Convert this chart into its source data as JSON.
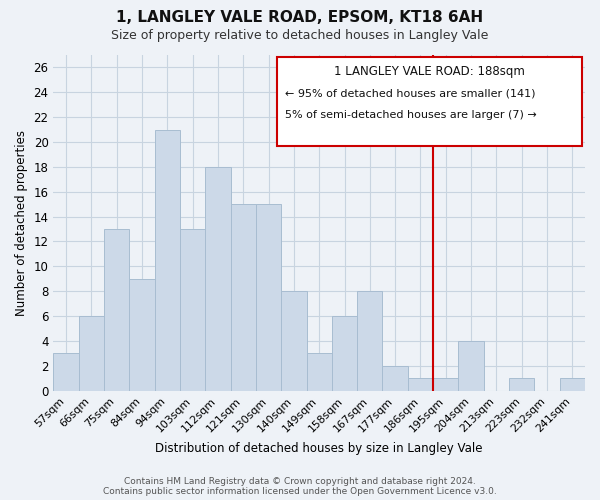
{
  "title": "1, LANGLEY VALE ROAD, EPSOM, KT18 6AH",
  "subtitle": "Size of property relative to detached houses in Langley Vale",
  "xlabel": "Distribution of detached houses by size in Langley Vale",
  "ylabel": "Number of detached properties",
  "bar_color": "#ccd9e8",
  "bar_edgecolor": "#a8bdd1",
  "bin_labels": [
    "57sqm",
    "66sqm",
    "75sqm",
    "84sqm",
    "94sqm",
    "103sqm",
    "112sqm",
    "121sqm",
    "130sqm",
    "140sqm",
    "149sqm",
    "158sqm",
    "167sqm",
    "177sqm",
    "186sqm",
    "195sqm",
    "204sqm",
    "213sqm",
    "223sqm",
    "232sqm",
    "241sqm"
  ],
  "bar_heights": [
    3,
    6,
    13,
    9,
    21,
    13,
    18,
    15,
    15,
    8,
    3,
    6,
    8,
    2,
    1,
    1,
    4,
    0,
    1,
    0,
    1
  ],
  "ylim": [
    0,
    27
  ],
  "yticks": [
    0,
    2,
    4,
    6,
    8,
    10,
    12,
    14,
    16,
    18,
    20,
    22,
    24,
    26
  ],
  "vline_x_index": 14,
  "vline_color": "#cc0000",
  "annotation_title": "1 LANGLEY VALE ROAD: 188sqm",
  "annotation_line1": "← 95% of detached houses are smaller (141)",
  "annotation_line2": "5% of semi-detached houses are larger (7) →",
  "footer_line1": "Contains HM Land Registry data © Crown copyright and database right 2024.",
  "footer_line2": "Contains public sector information licensed under the Open Government Licence v3.0.",
  "background_color": "#eef2f7",
  "plot_bg_color": "#eef2f7",
  "grid_color": "#c8d4e0"
}
